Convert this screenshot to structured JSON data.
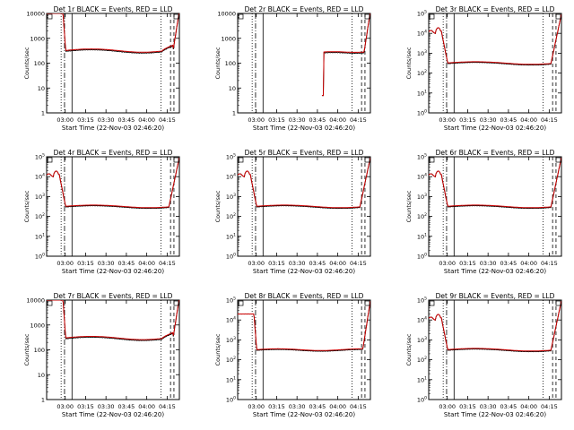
{
  "legend_note": "BLACK = Events, RED = LLD",
  "chart_data": [
    {
      "type": "line",
      "title": "Det 1r BLACK = Events, RED = LLD",
      "xlabel": "Start Time (22-Nov-03 02:46:20)",
      "ylabel": "Counts/sec",
      "yscale": "log",
      "ylim": [
        1,
        10000
      ],
      "yticks": [
        "1",
        "10",
        "100",
        "1000",
        "10000"
      ],
      "xlim": [
        "02:46:20",
        "04:24:00"
      ],
      "xticks": [
        "03:00",
        "03:15",
        "03:30",
        "03:45",
        "04:00",
        "04:15"
      ],
      "profile": "high-edges",
      "plateau": 300,
      "series": [
        {
          "name": "Events",
          "color": "#000000"
        },
        {
          "name": "LLD",
          "color": "#cc0000"
        }
      ]
    },
    {
      "type": "line",
      "title": "Det 2r BLACK = Events, RED = LLD",
      "xlabel": "Start Time (22-Nov-03 02:46:20)",
      "ylabel": "Counts/sec",
      "yscale": "log",
      "ylim": [
        1,
        10000
      ],
      "yticks": [
        "1",
        "10",
        "100",
        "1000",
        "10000"
      ],
      "xlim": [
        "02:46:20",
        "04:24:00"
      ],
      "xticks": [
        "03:00",
        "03:15",
        "03:30",
        "03:45",
        "04:00",
        "04:15"
      ],
      "profile": "late-start",
      "plateau": 260,
      "series": [
        {
          "name": "Events",
          "color": "#000000"
        },
        {
          "name": "LLD",
          "color": "#cc0000"
        }
      ]
    },
    {
      "type": "line",
      "title": "Det 3r BLACK = Events, RED = LLD",
      "xlabel": "Start Time (22-Nov-03 02:46:20)",
      "ylabel": "Counts/sec",
      "yscale": "log",
      "ylim": [
        1,
        100000
      ],
      "yticks": [
        "10^0",
        "10^1",
        "10^2",
        "10^3",
        "10^4",
        "10^5"
      ],
      "xlim": [
        "02:46:20",
        "04:24:00"
      ],
      "xticks": [
        "03:00",
        "03:15",
        "03:30",
        "03:45",
        "04:00",
        "04:15"
      ],
      "profile": "hump",
      "plateau": 300,
      "series": [
        {
          "name": "Events",
          "color": "#000000"
        },
        {
          "name": "LLD",
          "color": "#cc0000"
        }
      ]
    },
    {
      "type": "line",
      "title": "Det 4r BLACK = Events, RED = LLD",
      "xlabel": "Start Time (22-Nov-03 02:46:20)",
      "ylabel": "Counts/sec",
      "yscale": "log",
      "ylim": [
        1,
        100000
      ],
      "yticks": [
        "10^0",
        "10^1",
        "10^2",
        "10^3",
        "10^4",
        "10^5"
      ],
      "xlim": [
        "02:46:20",
        "04:24:00"
      ],
      "xticks": [
        "03:00",
        "03:15",
        "03:30",
        "03:45",
        "04:00",
        "04:15"
      ],
      "profile": "hump",
      "plateau": 300,
      "series": [
        {
          "name": "Events",
          "color": "#000000"
        },
        {
          "name": "LLD",
          "color": "#cc0000"
        }
      ]
    },
    {
      "type": "line",
      "title": "Det 5r BLACK = Events, RED = LLD",
      "xlabel": "Start Time (22-Nov-03 02:46:20)",
      "ylabel": "Counts/sec",
      "yscale": "log",
      "ylim": [
        1,
        100000
      ],
      "yticks": [
        "10^0",
        "10^1",
        "10^2",
        "10^3",
        "10^4",
        "10^5"
      ],
      "xlim": [
        "02:46:20",
        "04:24:00"
      ],
      "xticks": [
        "03:00",
        "03:15",
        "03:30",
        "03:45",
        "04:00",
        "04:15"
      ],
      "profile": "hump",
      "plateau": 300,
      "series": [
        {
          "name": "Events",
          "color": "#000000"
        },
        {
          "name": "LLD",
          "color": "#cc0000"
        }
      ]
    },
    {
      "type": "line",
      "title": "Det 6r BLACK = Events, RED = LLD",
      "xlabel": "Start Time (22-Nov-03 02:46:20)",
      "ylabel": "Counts/sec",
      "yscale": "log",
      "ylim": [
        1,
        100000
      ],
      "yticks": [
        "10^0",
        "10^1",
        "10^2",
        "10^3",
        "10^4",
        "10^5"
      ],
      "xlim": [
        "02:46:20",
        "04:24:00"
      ],
      "xticks": [
        "03:00",
        "03:15",
        "03:30",
        "03:45",
        "04:00",
        "04:15"
      ],
      "profile": "hump",
      "plateau": 300,
      "series": [
        {
          "name": "Events",
          "color": "#000000"
        },
        {
          "name": "LLD",
          "color": "#cc0000"
        }
      ]
    },
    {
      "type": "line",
      "title": "Det 7r BLACK = Events, RED = LLD",
      "xlabel": "Start Time (22-Nov-03 02:46:20)",
      "ylabel": "Counts/sec",
      "yscale": "log",
      "ylim": [
        1,
        10000
      ],
      "yticks": [
        "1",
        "10",
        "100",
        "1000",
        "10000"
      ],
      "xlim": [
        "02:46:20",
        "04:24:00"
      ],
      "xticks": [
        "03:00",
        "03:15",
        "03:30",
        "03:45",
        "04:00",
        "04:15"
      ],
      "profile": "high-edges",
      "plateau": 280,
      "series": [
        {
          "name": "Events",
          "color": "#000000"
        },
        {
          "name": "LLD",
          "color": "#cc0000"
        }
      ]
    },
    {
      "type": "line",
      "title": "Det 8r BLACK = Events, RED = LLD",
      "xlabel": "Start Time (22-Nov-03 02:46:20)",
      "ylabel": "Counts/sec",
      "yscale": "log",
      "ylim": [
        1,
        100000
      ],
      "yticks": [
        "10^0",
        "10^1",
        "10^2",
        "10^3",
        "10^4",
        "10^5"
      ],
      "xlim": [
        "02:46:20",
        "04:24:00"
      ],
      "xticks": [
        "03:00",
        "03:15",
        "03:30",
        "03:45",
        "04:00",
        "04:15"
      ],
      "profile": "flat-start",
      "plateau": 300,
      "series": [
        {
          "name": "Events",
          "color": "#000000"
        },
        {
          "name": "LLD",
          "color": "#cc0000"
        }
      ]
    },
    {
      "type": "line",
      "title": "Det 9r BLACK = Events, RED = LLD",
      "xlabel": "Start Time (22-Nov-03 02:46:20)",
      "ylabel": "Counts/sec",
      "yscale": "log",
      "ylim": [
        1,
        100000
      ],
      "yticks": [
        "10^0",
        "10^1",
        "10^2",
        "10^3",
        "10^4",
        "10^5"
      ],
      "xlim": [
        "02:46:20",
        "04:24:00"
      ],
      "xticks": [
        "03:00",
        "03:15",
        "03:30",
        "03:45",
        "04:00",
        "04:15"
      ],
      "profile": "hump",
      "plateau": 300,
      "series": [
        {
          "name": "Events",
          "color": "#000000"
        },
        {
          "name": "LLD",
          "color": "#cc0000"
        }
      ]
    }
  ]
}
